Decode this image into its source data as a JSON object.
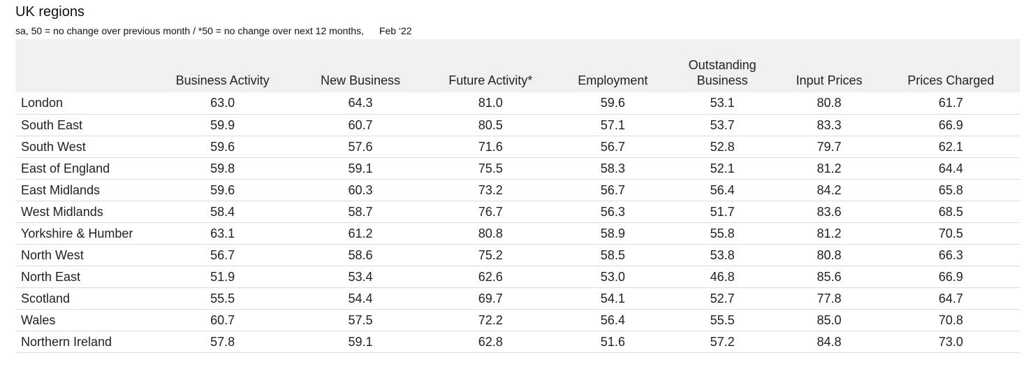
{
  "title": "UK regions",
  "subtitle": "sa, 50 = no change over previous month / *50 = no change over next 12 months,",
  "date": "Feb ‘22",
  "chart_data": {
    "type": "table",
    "title": "UK regions",
    "columns": [
      "Business Activity",
      "New Business",
      "Future Activity*",
      "Employment",
      "Outstanding\nBusiness",
      "Input Prices",
      "Prices Charged"
    ],
    "rows": [
      {
        "region": "London",
        "values": [
          "63.0",
          "64.3",
          "81.0",
          "59.6",
          "53.1",
          "80.8",
          "61.7"
        ]
      },
      {
        "region": "South East",
        "values": [
          "59.9",
          "60.7",
          "80.5",
          "57.1",
          "53.7",
          "83.3",
          "66.9"
        ]
      },
      {
        "region": "South West",
        "values": [
          "59.6",
          "57.6",
          "71.6",
          "56.7",
          "52.8",
          "79.7",
          "62.1"
        ]
      },
      {
        "region": "East of England",
        "values": [
          "59.8",
          "59.1",
          "75.5",
          "58.3",
          "52.1",
          "81.2",
          "64.4"
        ]
      },
      {
        "region": "East Midlands",
        "values": [
          "59.6",
          "60.3",
          "73.2",
          "56.7",
          "56.4",
          "84.2",
          "65.8"
        ]
      },
      {
        "region": "West Midlands",
        "values": [
          "58.4",
          "58.7",
          "76.7",
          "56.3",
          "51.7",
          "83.6",
          "68.5"
        ]
      },
      {
        "region": "Yorkshire & Humber",
        "values": [
          "63.1",
          "61.2",
          "80.8",
          "58.9",
          "55.8",
          "81.2",
          "70.5"
        ]
      },
      {
        "region": "North West",
        "values": [
          "56.7",
          "58.6",
          "75.2",
          "58.5",
          "53.8",
          "80.8",
          "66.3"
        ]
      },
      {
        "region": "North East",
        "values": [
          "51.9",
          "53.4",
          "62.6",
          "53.0",
          "46.8",
          "85.6",
          "66.9"
        ]
      },
      {
        "region": "Scotland",
        "values": [
          "55.5",
          "54.4",
          "69.7",
          "54.1",
          "52.7",
          "77.8",
          "64.7"
        ]
      },
      {
        "region": "Wales",
        "values": [
          "60.7",
          "57.5",
          "72.2",
          "56.4",
          "55.5",
          "85.0",
          "70.8"
        ]
      },
      {
        "region": "Northern Ireland",
        "values": [
          "57.8",
          "59.1",
          "62.8",
          "51.6",
          "57.2",
          "84.8",
          "73.0"
        ]
      }
    ]
  }
}
